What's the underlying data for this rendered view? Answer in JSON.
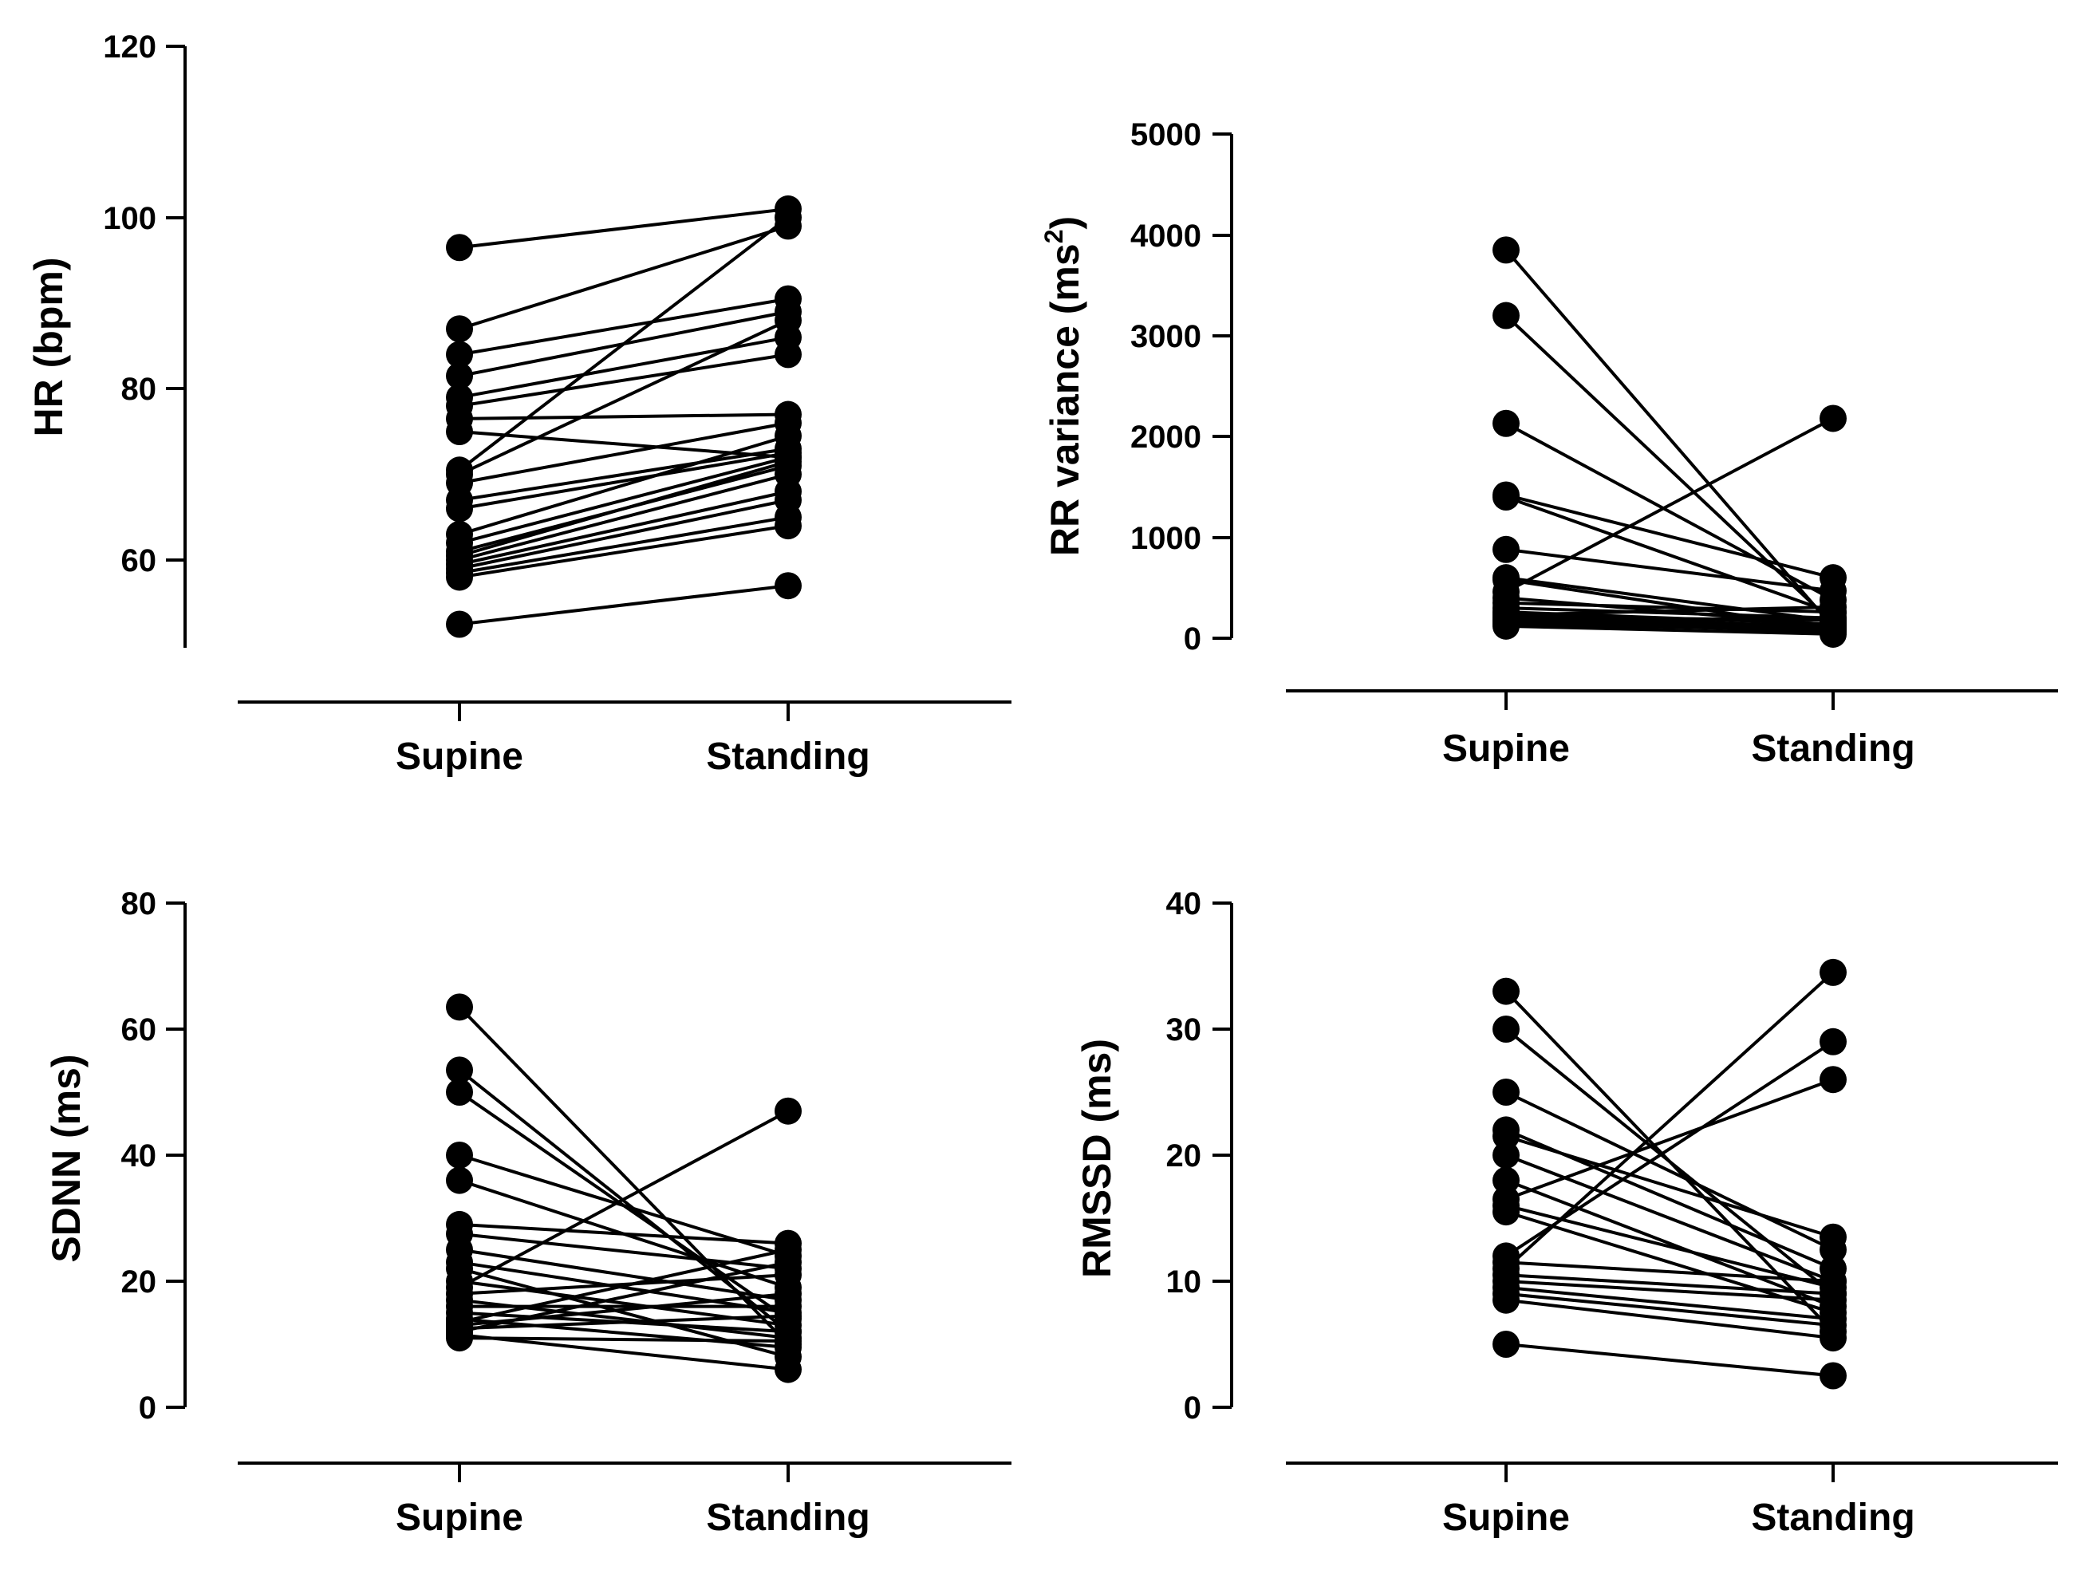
{
  "chart_data": [
    {
      "type": "line",
      "id": "hr",
      "title": "",
      "xlabel": "",
      "ylabel": "HR (bpm)",
      "ylabel_sup": "",
      "ylabel_tail": "",
      "categories": [
        "Supine",
        "Standing"
      ],
      "yticks": [
        60,
        80,
        100,
        120
      ],
      "ylim": [
        50,
        120
      ],
      "grid": false,
      "pairs": [
        [
          96.5,
          101.0
        ],
        [
          87.0,
          99.0
        ],
        [
          84.0,
          90.5
        ],
        [
          81.5,
          89.0
        ],
        [
          79.0,
          86.0
        ],
        [
          78.0,
          84.0
        ],
        [
          76.5,
          77.0
        ],
        [
          75.0,
          72.0
        ],
        [
          70.5,
          100.0
        ],
        [
          70.0,
          88.0
        ],
        [
          69.0,
          76.0
        ],
        [
          67.0,
          73.0
        ],
        [
          66.0,
          72.5
        ],
        [
          63.0,
          74.5
        ],
        [
          62.0,
          72.0
        ],
        [
          61.0,
          71.0
        ],
        [
          60.5,
          71.5
        ],
        [
          60.0,
          70.0
        ],
        [
          59.5,
          68.0
        ],
        [
          59.0,
          67.0
        ],
        [
          58.5,
          65.0
        ],
        [
          58.0,
          64.0
        ],
        [
          52.5,
          57.0
        ]
      ]
    },
    {
      "type": "line",
      "id": "rrvar",
      "title": "",
      "xlabel": "",
      "ylabel": "RR variance (ms",
      "ylabel_sup": "2",
      "ylabel_tail": ")",
      "categories": [
        "Supine",
        "Standing"
      ],
      "yticks": [
        0,
        1000,
        2000,
        3000,
        4000,
        5000
      ],
      "ylim": [
        0,
        5000
      ],
      "grid": false,
      "pairs": [
        [
          3850,
          110
        ],
        [
          3200,
          150
        ],
        [
          2130,
          380
        ],
        [
          1420,
          600
        ],
        [
          1400,
          250
        ],
        [
          880,
          470
        ],
        [
          600,
          170
        ],
        [
          580,
          90
        ],
        [
          460,
          2180
        ],
        [
          400,
          130
        ],
        [
          350,
          260
        ],
        [
          300,
          200
        ],
        [
          260,
          140
        ],
        [
          250,
          100
        ],
        [
          230,
          310
        ],
        [
          210,
          180
        ],
        [
          200,
          120
        ],
        [
          180,
          90
        ],
        [
          170,
          60
        ],
        [
          160,
          200
        ],
        [
          150,
          110
        ],
        [
          140,
          80
        ],
        [
          120,
          40
        ]
      ]
    },
    {
      "type": "line",
      "id": "sdnn",
      "title": "",
      "xlabel": "",
      "ylabel": "SDNN (ms)",
      "ylabel_sup": "",
      "ylabel_tail": "",
      "categories": [
        "Supine",
        "Standing"
      ],
      "yticks": [
        0,
        20,
        40,
        60,
        80
      ],
      "ylim": [
        0,
        80
      ],
      "grid": false,
      "pairs": [
        [
          63.5,
          10.0
        ],
        [
          53.5,
          12.0
        ],
        [
          50.0,
          14.0
        ],
        [
          40.0,
          24.0
        ],
        [
          36.0,
          19.0
        ],
        [
          29.0,
          26.0
        ],
        [
          27.5,
          22.0
        ],
        [
          25.0,
          17.0
        ],
        [
          23.0,
          15.0
        ],
        [
          22.0,
          8.0
        ],
        [
          20.0,
          13.0
        ],
        [
          19.0,
          47.0
        ],
        [
          18.0,
          21.0
        ],
        [
          17.0,
          11.0
        ],
        [
          16.0,
          16.0
        ],
        [
          15.0,
          12.0
        ],
        [
          14.0,
          9.5
        ],
        [
          13.5,
          25.0
        ],
        [
          13.0,
          18.0
        ],
        [
          12.5,
          14.5
        ],
        [
          12.0,
          23.0
        ],
        [
          11.5,
          6.0
        ],
        [
          11.0,
          10.5
        ]
      ]
    },
    {
      "type": "line",
      "id": "rmssd",
      "title": "",
      "xlabel": "",
      "ylabel": "RMSSD (ms)",
      "ylabel_sup": "",
      "ylabel_tail": "",
      "categories": [
        "Supine",
        "Standing"
      ],
      "yticks": [
        0,
        10,
        20,
        30,
        40
      ],
      "ylim": [
        0,
        40
      ],
      "grid": false,
      "pairs": [
        [
          33.0,
          6.0
        ],
        [
          30.0,
          9.0
        ],
        [
          25.0,
          12.5
        ],
        [
          22.0,
          11.0
        ],
        [
          21.5,
          13.5
        ],
        [
          20.0,
          10.0
        ],
        [
          18.0,
          8.0
        ],
        [
          16.5,
          26.0
        ],
        [
          16.0,
          9.5
        ],
        [
          15.5,
          7.5
        ],
        [
          12.0,
          29.0
        ],
        [
          11.5,
          10.0
        ],
        [
          11.0,
          34.5
        ],
        [
          10.5,
          9.0
        ],
        [
          10.0,
          8.5
        ],
        [
          9.5,
          7.0
        ],
        [
          9.0,
          6.5
        ],
        [
          8.5,
          5.5
        ],
        [
          5.0,
          2.5
        ]
      ]
    }
  ]
}
